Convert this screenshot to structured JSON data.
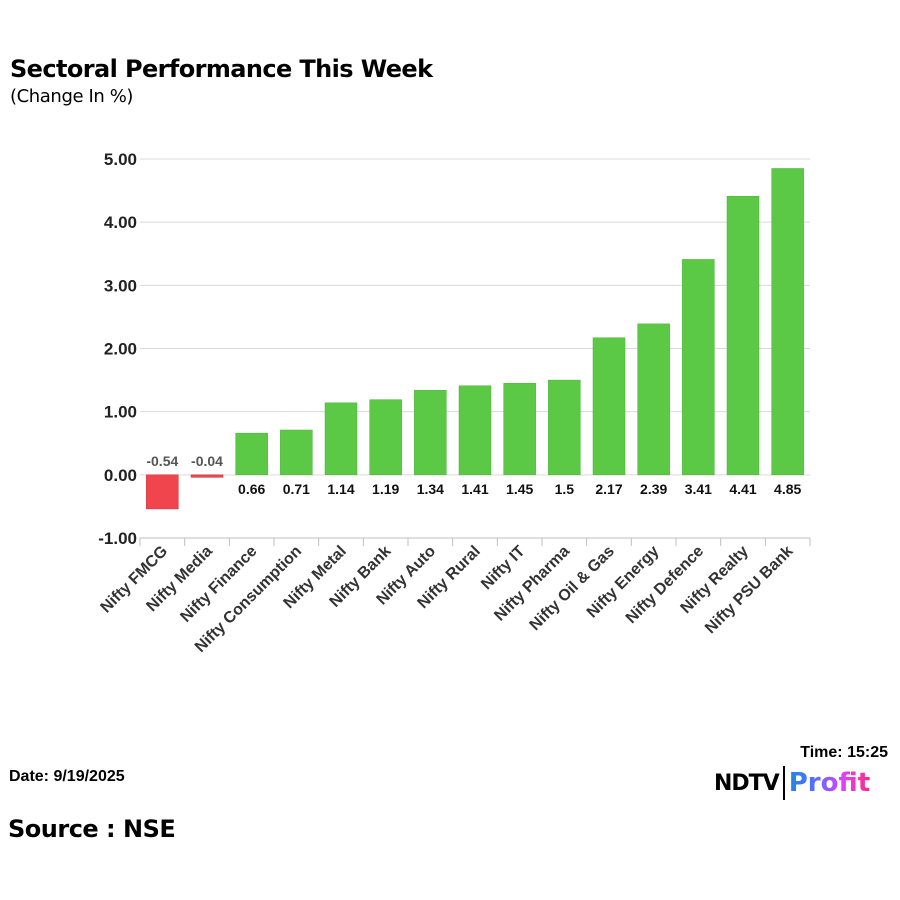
{
  "chart_data": {
    "type": "bar",
    "title": "Sectoral Performance This Week",
    "subtitle": "(Change In %)",
    "categories": [
      "Nifty FMCG",
      "Nifty Media",
      "Nifty Finance",
      "Nifty Consumption",
      "Nifty Metal",
      "Nifty Bank",
      "Nifty Auto",
      "Nifty Rural",
      "Nifty IT",
      "Nifty Pharma",
      "Nifty Oil & Gas",
      "Nifty Energy",
      "Nifty Defence",
      "Nifty Realty",
      "Nifty PSU Bank"
    ],
    "values": [
      -0.54,
      -0.04,
      0.66,
      0.71,
      1.14,
      1.19,
      1.34,
      1.41,
      1.45,
      1.5,
      2.17,
      2.39,
      3.41,
      4.41,
      4.85
    ],
    "data_labels": [
      "-0.54",
      "-0.04",
      "0.66",
      "0.71",
      "1.14",
      "1.19",
      "1.34",
      "1.41",
      "1.45",
      "1.5",
      "2.17",
      "2.39",
      "3.41",
      "4.41",
      "4.85"
    ],
    "yticks": [
      "5.00",
      "4.00",
      "3.00",
      "2.00",
      "1.00",
      "0.00",
      "-1.00"
    ],
    "ytick_values": [
      5,
      4,
      3,
      2,
      1,
      0,
      -1
    ],
    "ylim": [
      -1,
      5
    ],
    "grid": true,
    "legend": "none",
    "colors": {
      "positive": "#5cc946",
      "negative": "#f0454d",
      "grid": "#d9d9d9"
    }
  },
  "footer": {
    "date": "Date: 9/19/2025",
    "source": "Source : NSE",
    "time": "Time: 15:25",
    "logo_text": "NDTV Profit",
    "logo_left": "NDTV",
    "logo_right": "Profit"
  }
}
